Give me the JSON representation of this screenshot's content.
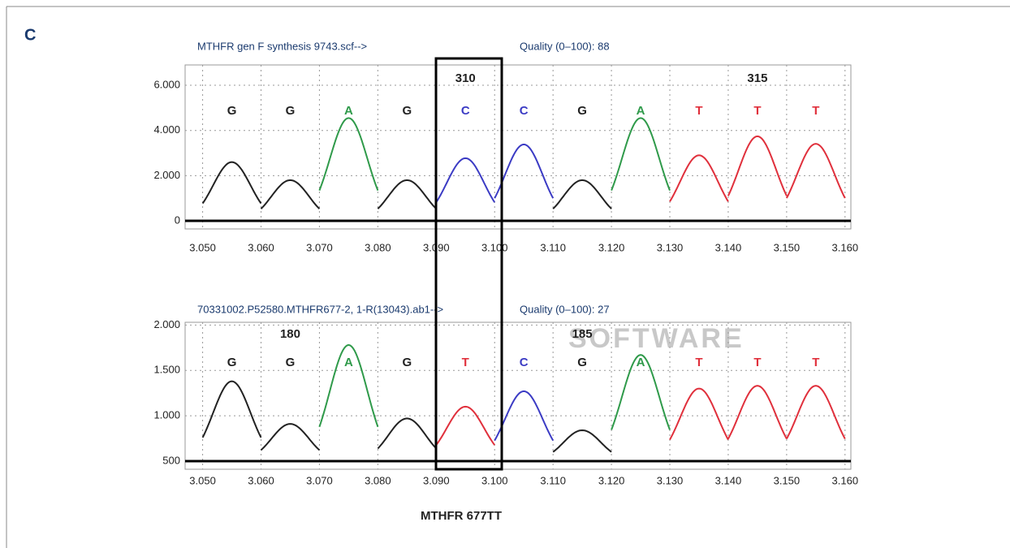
{
  "panel_label": "C",
  "caption": "MTHFR 677TT",
  "chart_data": [
    {
      "type": "chromatogram",
      "title": "MTHFR gen F synthesis 9743.scf-->",
      "subtitle": "Quality (0–100): 88",
      "bases": [
        "G",
        "G",
        "A",
        "G",
        "C",
        "C",
        "G",
        "A",
        "T",
        "T",
        "T"
      ],
      "peak_x": [
        3.055,
        3.065,
        3.075,
        3.085,
        3.095,
        3.105,
        3.115,
        3.125,
        3.135,
        3.145,
        3.155
      ],
      "values": [
        2600,
        1800,
        4550,
        1800,
        2770,
        3380,
        1800,
        4550,
        2900,
        3740,
        3410
      ],
      "base_colors": {
        "A": "#2f9a4a",
        "C": "#3b3bc4",
        "G": "#222222",
        "T": "#e0303c"
      },
      "position_labels": [
        {
          "x": 3.095,
          "value": 310
        },
        {
          "x": 3.145,
          "value": 315
        }
      ],
      "xlim": [
        3.047,
        3.161
      ],
      "ylim": [
        -360,
        6900
      ],
      "xticks": [
        {
          "value": 3.05,
          "label": "3.050"
        },
        {
          "value": 3.06,
          "label": "3.060"
        },
        {
          "value": 3.07,
          "label": "3.070"
        },
        {
          "value": 3.08,
          "label": "3.080"
        },
        {
          "value": 3.09,
          "label": "3.090"
        },
        {
          "value": 3.1,
          "label": "3.100"
        },
        {
          "value": 3.11,
          "label": "3.110"
        },
        {
          "value": 3.12,
          "label": "3.120"
        },
        {
          "value": 3.13,
          "label": "3.130"
        },
        {
          "value": 3.14,
          "label": "3.140"
        },
        {
          "value": 3.15,
          "label": "3.150"
        },
        {
          "value": 3.16,
          "label": "3.160"
        }
      ],
      "yticks": [
        0,
        {
          "value": 2000,
          "label": "2.000"
        },
        {
          "value": 4000,
          "label": "4.000"
        },
        {
          "value": 6000,
          "label": "6.000"
        }
      ],
      "grid": true
    },
    {
      "type": "chromatogram",
      "title": "70331002.P52580.MTHFR677-2, 1-R(13043).ab1-->",
      "subtitle": "Quality (0–100): 27",
      "watermark": "SOFTWARE",
      "bases": [
        "G",
        "G",
        "A",
        "G",
        "T",
        "C",
        "G",
        "A",
        "T",
        "T",
        "T"
      ],
      "peak_x": [
        3.055,
        3.065,
        3.075,
        3.085,
        3.095,
        3.105,
        3.115,
        3.125,
        3.135,
        3.145,
        3.155
      ],
      "values": [
        1380,
        910,
        1780,
        970,
        1100,
        1270,
        840,
        1670,
        1300,
        1330,
        1330
      ],
      "base_colors": {
        "A": "#2f9a4a",
        "C": "#3b3bc4",
        "G": "#222222",
        "T": "#e0303c"
      },
      "position_labels": [
        {
          "x": 3.065,
          "value": 180
        },
        {
          "x": 3.115,
          "value": 185
        }
      ],
      "xlim": [
        3.047,
        3.161
      ],
      "ylim": [
        410,
        2030
      ],
      "xticks": [
        {
          "value": 3.05,
          "label": "3.050"
        },
        {
          "value": 3.06,
          "label": "3.060"
        },
        {
          "value": 3.07,
          "label": "3.070"
        },
        {
          "value": 3.08,
          "label": "3.080"
        },
        {
          "value": 3.09,
          "label": "3.090"
        },
        {
          "value": 3.1,
          "label": "3.100"
        },
        {
          "value": 3.11,
          "label": "3.110"
        },
        {
          "value": 3.12,
          "label": "3.120"
        },
        {
          "value": 3.13,
          "label": "3.130"
        },
        {
          "value": 3.14,
          "label": "3.140"
        },
        {
          "value": 3.15,
          "label": "3.150"
        },
        {
          "value": 3.16,
          "label": "3.160"
        }
      ],
      "yticks": [
        500,
        {
          "value": 1000,
          "label": "1.000"
        },
        {
          "value": 1500,
          "label": "1.500"
        },
        {
          "value": 2000,
          "label": "2.000"
        }
      ],
      "grid": true
    }
  ]
}
